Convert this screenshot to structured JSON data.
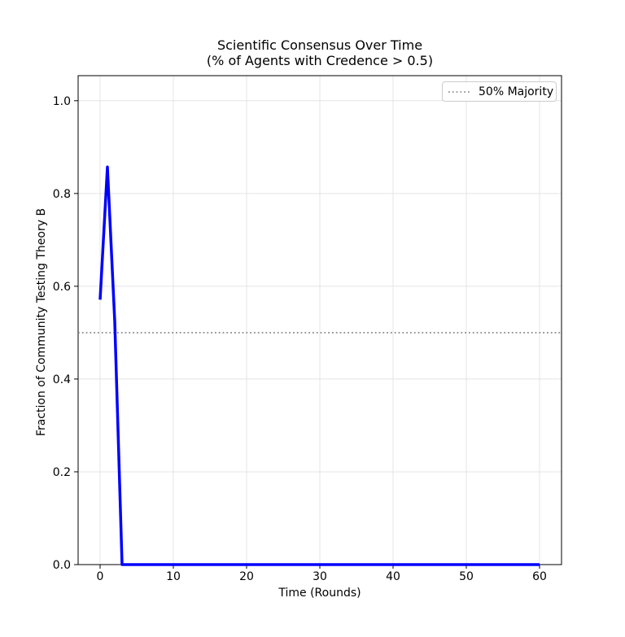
{
  "figure": {
    "title_line1": "Scientific Consensus Over Time",
    "title_line2": "(% of Agents with Credence > 0.5)",
    "xlabel": "Time (Rounds)",
    "ylabel": "Fraction of Community Testing Theory B",
    "legend_label": "50% Majority"
  },
  "chart_data": {
    "type": "line",
    "title": "Scientific Consensus Over Time (% of Agents with Credence > 0.5)",
    "xlabel": "Time (Rounds)",
    "ylabel": "Fraction of Community Testing Theory B",
    "xlim": [
      -3,
      63
    ],
    "ylim": [
      0,
      1.054
    ],
    "x_tick_values": [
      0,
      10,
      20,
      30,
      40,
      50,
      60
    ],
    "x_tick_labels": [
      "0",
      "10",
      "20",
      "30",
      "40",
      "50",
      "60"
    ],
    "y_tick_values": [
      0.0,
      0.2,
      0.4,
      0.6,
      0.8,
      1.0
    ],
    "y_tick_labels": [
      "0.0",
      "0.2",
      "0.4",
      "0.6",
      "0.8",
      "1.0"
    ],
    "grid": true,
    "grid_color": "#e4e4e4",
    "legend_position": "upper right",
    "series": [
      {
        "name": "fraction-testing-theory-b",
        "color": "#0000ff",
        "linewidth": 3.5,
        "x": [
          0,
          1,
          2,
          3,
          4,
          5,
          6,
          7,
          8,
          9,
          10,
          11,
          12,
          13,
          14,
          15,
          16,
          17,
          18,
          19,
          20,
          21,
          22,
          23,
          24,
          25,
          26,
          27,
          28,
          29,
          30,
          31,
          32,
          33,
          34,
          35,
          36,
          37,
          38,
          39,
          40,
          41,
          42,
          43,
          44,
          45,
          46,
          47,
          48,
          49,
          50,
          51,
          52,
          53,
          54,
          55,
          56,
          57,
          58,
          59,
          60
        ],
        "y": [
          0.571,
          0.857,
          0.524,
          0,
          0,
          0,
          0,
          0,
          0,
          0,
          0,
          0,
          0,
          0,
          0,
          0,
          0,
          0,
          0,
          0,
          0,
          0,
          0,
          0,
          0,
          0,
          0,
          0,
          0,
          0,
          0,
          0,
          0,
          0,
          0,
          0,
          0,
          0,
          0,
          0,
          0,
          0,
          0,
          0,
          0,
          0,
          0,
          0,
          0,
          0,
          0,
          0,
          0,
          0,
          0,
          0,
          0,
          0,
          0,
          0,
          0
        ]
      }
    ],
    "reference_line": {
      "label": "50% Majority",
      "y": 0.5,
      "color": "#808080",
      "style": "dotted",
      "linewidth": 1.6
    }
  }
}
